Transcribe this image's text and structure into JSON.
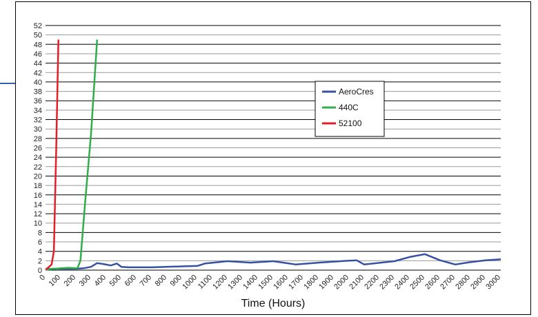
{
  "chart_data": {
    "type": "line",
    "title": "",
    "xlabel": "Time (Hours)",
    "ylabel": "",
    "xlim": [
      0,
      3000
    ],
    "ylim": [
      0,
      52
    ],
    "x_ticks": [
      0,
      100,
      200,
      300,
      400,
      500,
      600,
      700,
      800,
      900,
      1000,
      1100,
      1200,
      1300,
      1400,
      1500,
      1600,
      1700,
      1800,
      1900,
      2000,
      2100,
      2200,
      2300,
      2400,
      2500,
      2600,
      2700,
      2800,
      2900,
      3000
    ],
    "y_ticks": [
      0,
      2,
      4,
      6,
      8,
      10,
      12,
      14,
      16,
      18,
      20,
      22,
      24,
      26,
      28,
      30,
      32,
      34,
      36,
      38,
      40,
      42,
      44,
      46,
      48,
      50,
      52
    ],
    "grid": true,
    "legend_position": "upper-right",
    "series": [
      {
        "name": "AeroCres",
        "color": "#3651a3",
        "points": [
          [
            0,
            0.2
          ],
          [
            50,
            0.3
          ],
          [
            100,
            0.3
          ],
          [
            200,
            0.3
          ],
          [
            250,
            0.4
          ],
          [
            300,
            0.7
          ],
          [
            340,
            1.5
          ],
          [
            380,
            1.3
          ],
          [
            430,
            1.0
          ],
          [
            470,
            1.4
          ],
          [
            500,
            0.7
          ],
          [
            550,
            0.6
          ],
          [
            700,
            0.6
          ],
          [
            900,
            0.8
          ],
          [
            1000,
            0.9
          ],
          [
            1050,
            1.4
          ],
          [
            1200,
            1.9
          ],
          [
            1350,
            1.6
          ],
          [
            1500,
            1.9
          ],
          [
            1650,
            1.2
          ],
          [
            1800,
            1.6
          ],
          [
            2000,
            2.0
          ],
          [
            2050,
            2.1
          ],
          [
            2100,
            1.2
          ],
          [
            2300,
            1.9
          ],
          [
            2400,
            2.8
          ],
          [
            2500,
            3.4
          ],
          [
            2600,
            2.1
          ],
          [
            2700,
            1.2
          ],
          [
            2800,
            1.7
          ],
          [
            2900,
            2.1
          ],
          [
            3000,
            2.3
          ]
        ]
      },
      {
        "name": "440C",
        "color": "#2fae48",
        "points": [
          [
            0,
            0.1
          ],
          [
            100,
            0.4
          ],
          [
            150,
            0.5
          ],
          [
            210,
            0.4
          ],
          [
            230,
            2.0
          ],
          [
            260,
            14.0
          ],
          [
            300,
            29.0
          ],
          [
            340,
            49.0
          ]
        ]
      },
      {
        "name": "52100",
        "color": "#e41e26",
        "points": [
          [
            0,
            0.1
          ],
          [
            20,
            0.6
          ],
          [
            40,
            1.2
          ],
          [
            55,
            4.0
          ],
          [
            70,
            25.0
          ],
          [
            85,
            49.0
          ]
        ]
      }
    ]
  }
}
